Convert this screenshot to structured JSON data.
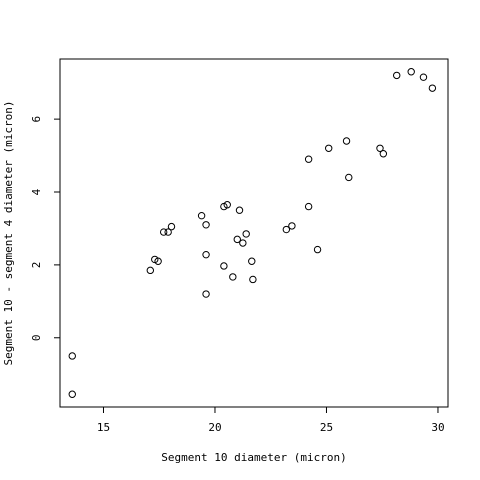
{
  "chart_data": {
    "type": "scatter",
    "xlabel": "Segment 10 diameter (micron)",
    "ylabel": "Segment 10 - segment 4 diameter (micron)",
    "xlim": [
      13.05,
      30.45
    ],
    "ylim": [
      -1.9,
      7.65
    ],
    "x_ticks": [
      15,
      20,
      25,
      30
    ],
    "y_ticks": [
      0,
      2,
      4,
      6
    ],
    "x_tick_labels": [
      "15",
      "20",
      "25",
      "30"
    ],
    "y_tick_labels": [
      "0",
      "2",
      "4",
      "6"
    ],
    "grid": false,
    "legend": "none",
    "marker": "open-circle",
    "points": [
      {
        "x": 13.6,
        "y": -0.5
      },
      {
        "x": 13.6,
        "y": -1.55
      },
      {
        "x": 17.1,
        "y": 1.85
      },
      {
        "x": 17.3,
        "y": 2.15
      },
      {
        "x": 17.45,
        "y": 2.1
      },
      {
        "x": 17.7,
        "y": 2.9
      },
      {
        "x": 17.9,
        "y": 2.9
      },
      {
        "x": 18.05,
        "y": 3.05
      },
      {
        "x": 19.4,
        "y": 3.35
      },
      {
        "x": 19.6,
        "y": 3.1
      },
      {
        "x": 19.6,
        "y": 2.28
      },
      {
        "x": 19.6,
        "y": 1.2
      },
      {
        "x": 20.4,
        "y": 3.6
      },
      {
        "x": 20.55,
        "y": 3.65
      },
      {
        "x": 20.4,
        "y": 1.97
      },
      {
        "x": 20.8,
        "y": 1.67
      },
      {
        "x": 21.0,
        "y": 2.7
      },
      {
        "x": 21.1,
        "y": 3.5
      },
      {
        "x": 21.25,
        "y": 2.6
      },
      {
        "x": 21.4,
        "y": 2.85
      },
      {
        "x": 21.65,
        "y": 2.1
      },
      {
        "x": 21.7,
        "y": 1.6
      },
      {
        "x": 23.2,
        "y": 2.97
      },
      {
        "x": 23.45,
        "y": 3.07
      },
      {
        "x": 24.2,
        "y": 4.9
      },
      {
        "x": 24.2,
        "y": 3.6
      },
      {
        "x": 24.6,
        "y": 2.42
      },
      {
        "x": 25.1,
        "y": 5.2
      },
      {
        "x": 25.9,
        "y": 5.4
      },
      {
        "x": 26.0,
        "y": 4.4
      },
      {
        "x": 27.4,
        "y": 5.2
      },
      {
        "x": 27.55,
        "y": 5.05
      },
      {
        "x": 28.15,
        "y": 7.2
      },
      {
        "x": 28.8,
        "y": 7.3
      },
      {
        "x": 29.35,
        "y": 7.15
      },
      {
        "x": 29.75,
        "y": 6.85
      }
    ]
  }
}
